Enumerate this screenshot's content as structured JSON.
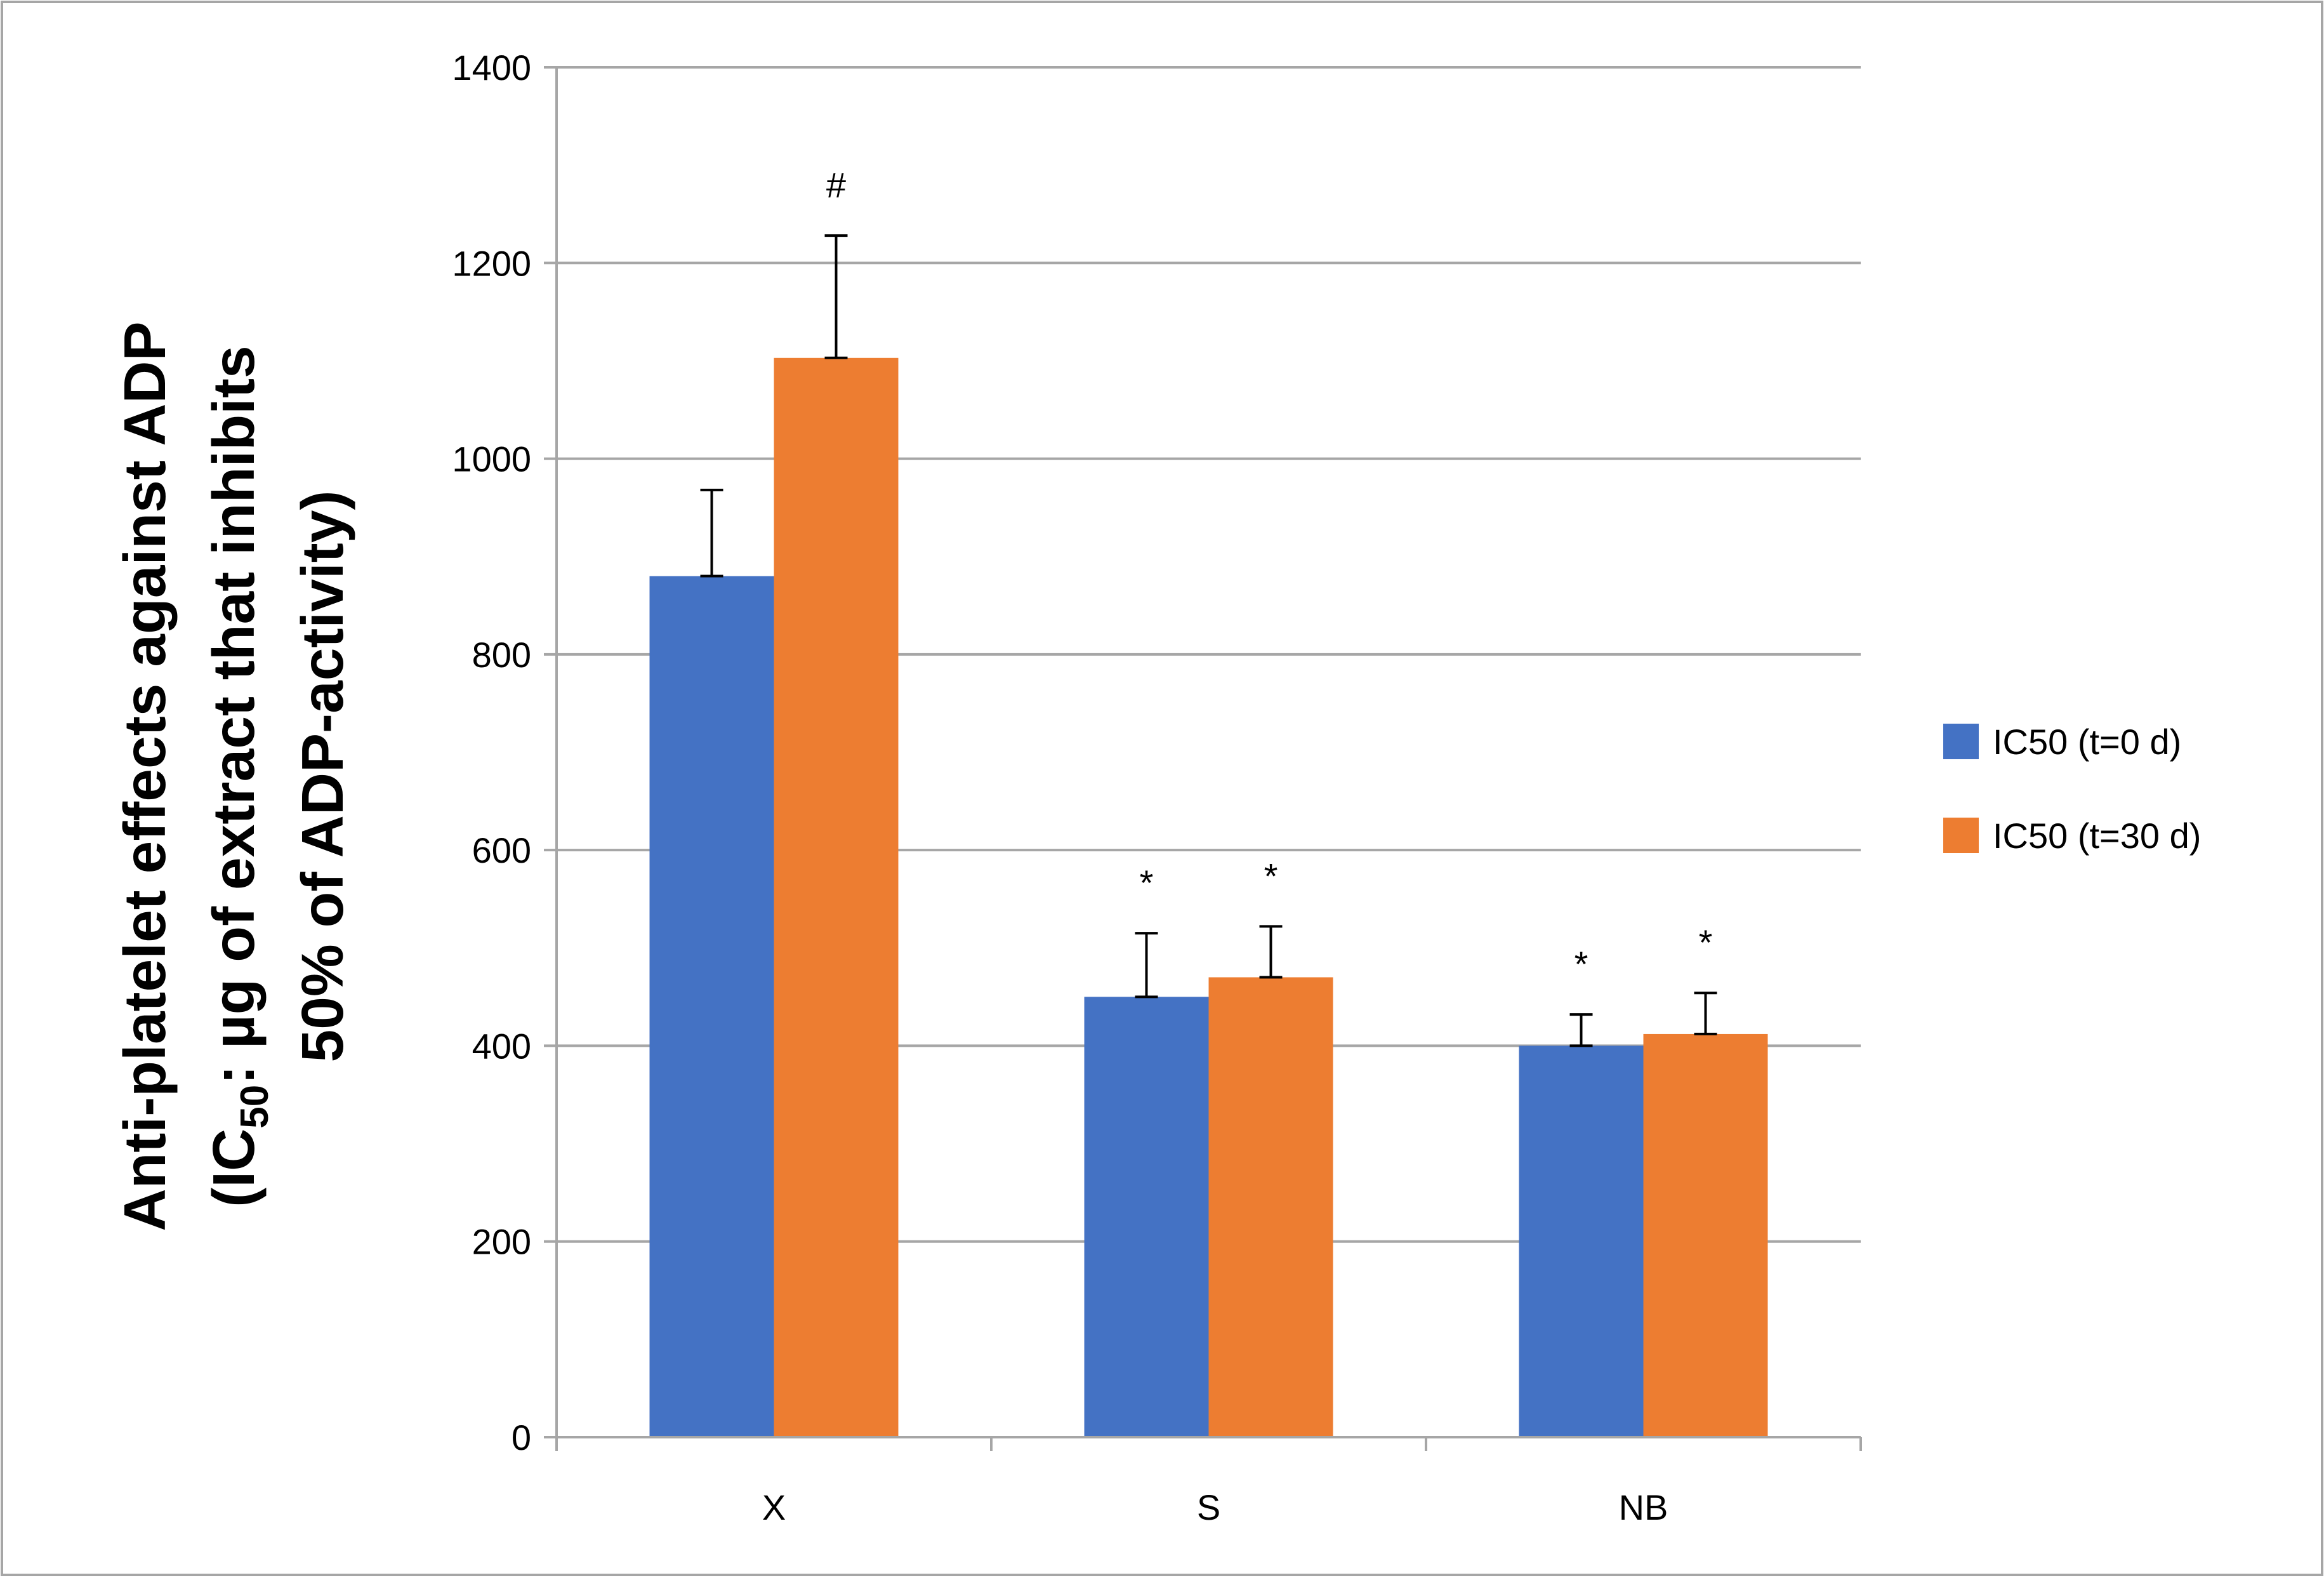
{
  "chart_data": {
    "type": "bar",
    "title": "",
    "xlabel": "",
    "ylabel": {
      "line1": "Anti-platelet effects against ADP",
      "line2_prefix": "(IC",
      "line2_subscript": "50",
      "line2_suffix": ": µg of extract that inhibits",
      "line3": "50% of ADP-activity)"
    },
    "ylim": [
      0,
      1400
    ],
    "yticks": [
      0,
      200,
      400,
      600,
      800,
      1000,
      1200,
      1400
    ],
    "grid": true,
    "legend_position": "right",
    "categories": [
      "X",
      "S",
      "NB"
    ],
    "series": [
      {
        "name": "IC50 (t=0 d)",
        "color": "#4472C4",
        "values": [
          880,
          450,
          400
        ],
        "errors": [
          88,
          65,
          32
        ],
        "annotations": [
          "",
          "*",
          "*"
        ]
      },
      {
        "name": "IC50 (t=30 d)",
        "color": "#ED7D31",
        "values": [
          1103,
          470,
          412
        ],
        "errors": [
          125,
          52,
          42
        ],
        "annotations": [
          "#",
          "*",
          "*"
        ]
      }
    ]
  }
}
